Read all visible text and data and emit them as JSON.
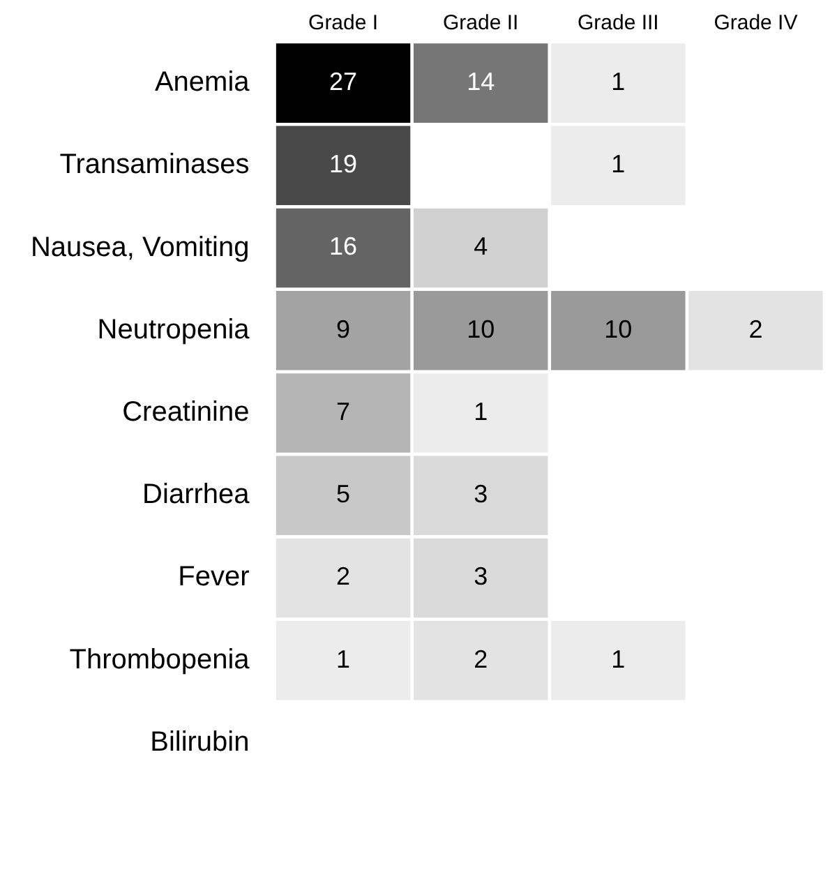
{
  "chart_data": {
    "type": "heatmap",
    "categories": [
      "Grade I",
      "Grade II",
      "Grade III",
      "Grade IV"
    ],
    "y_categories": [
      "Anemia",
      "Transaminases",
      "Nausea, Vomiting",
      "Neutropenia",
      "Creatinine",
      "Diarrhea",
      "Fever",
      "Thrombopenia",
      "Bilirubin"
    ],
    "cells": [
      [
        27,
        14,
        1,
        null
      ],
      [
        19,
        null,
        1,
        null
      ],
      [
        16,
        4,
        null,
        null
      ],
      [
        9,
        10,
        10,
        2
      ],
      [
        7,
        1,
        null,
        null
      ],
      [
        5,
        3,
        null,
        null
      ],
      [
        2,
        3,
        null,
        null
      ],
      [
        1,
        2,
        1,
        null
      ],
      [
        null,
        null,
        null,
        null
      ]
    ],
    "data_labels": true
  }
}
